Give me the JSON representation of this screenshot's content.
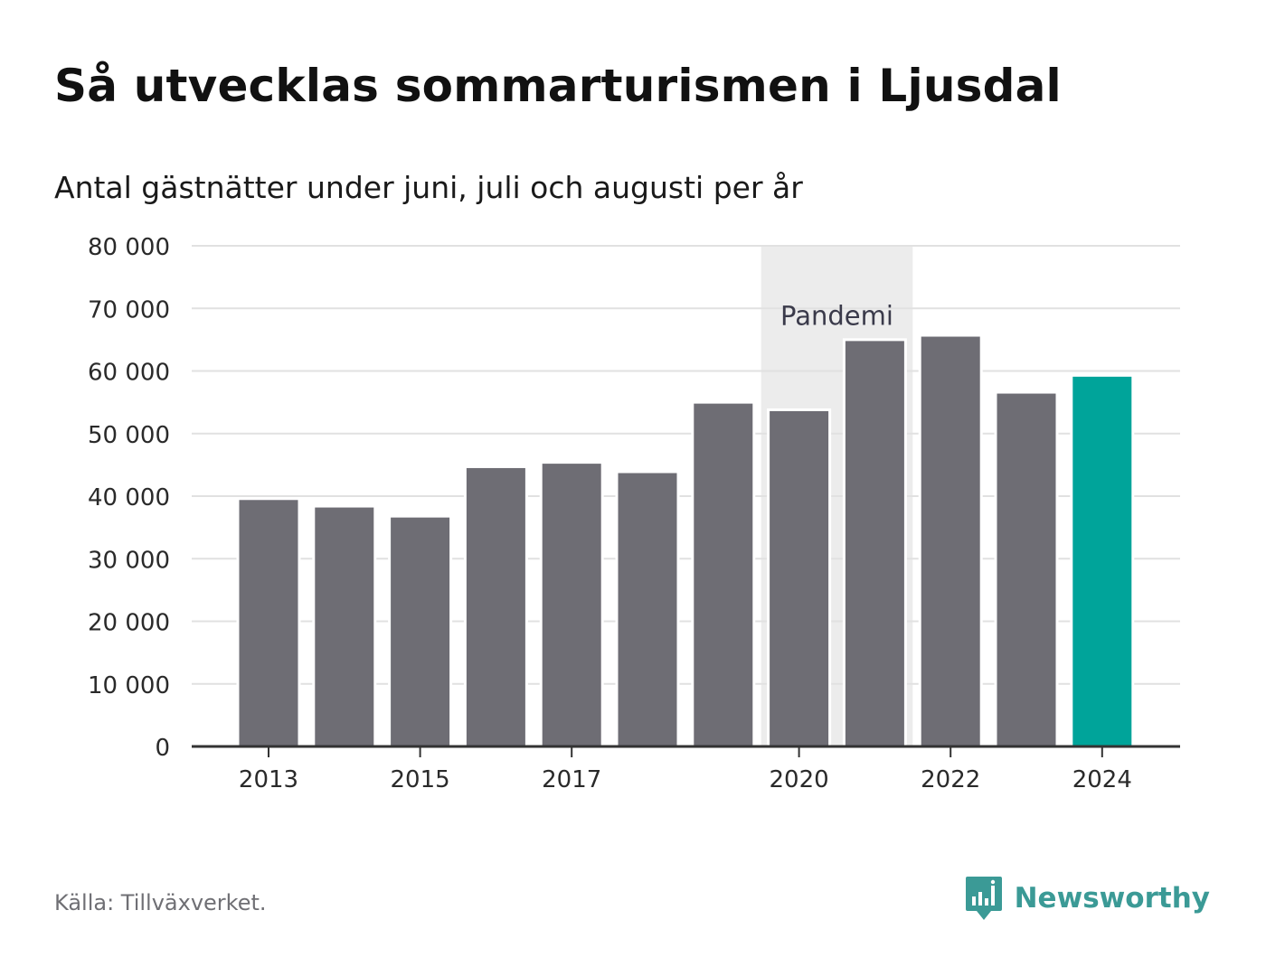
{
  "title": "Så utvecklas sommarturismen i Ljusdal",
  "subtitle": "Antal gästnätter under juni, juli och augusti per år",
  "source": "Källa: Tillväxverket.",
  "brand": {
    "name": "Newsworthy",
    "icon": "newsworthy-logo-icon",
    "color": "#3b9a96"
  },
  "colors": {
    "bar": "#6e6d74",
    "highlight": "#00a49a",
    "annotation_band": "#ececec",
    "grid": "#e1e1e1",
    "axis": "#333333"
  },
  "chart_data": {
    "type": "bar",
    "categories": [
      "2013",
      "2014",
      "2015",
      "2016",
      "2017",
      "2018",
      "2019",
      "2020",
      "2021",
      "2022",
      "2023",
      "2024"
    ],
    "values": [
      39600,
      38400,
      36800,
      44700,
      45400,
      43900,
      55000,
      53800,
      65000,
      65700,
      56600,
      59300
    ],
    "highlight_category": "2024",
    "x_tick_labels": [
      "2013",
      "2015",
      "2017",
      "2020",
      "2022",
      "2024"
    ],
    "y_tick_values": [
      0,
      10000,
      20000,
      30000,
      40000,
      50000,
      60000,
      70000,
      80000
    ],
    "y_tick_labels": [
      "0",
      "10 000",
      "20 000",
      "30 000",
      "40 000",
      "50 000",
      "60 000",
      "70 000",
      "80 000"
    ],
    "ylim": [
      0,
      80000
    ],
    "grid": true,
    "annotation": {
      "label": "Pandemi",
      "from_category": "2020",
      "to_category": "2021"
    }
  }
}
